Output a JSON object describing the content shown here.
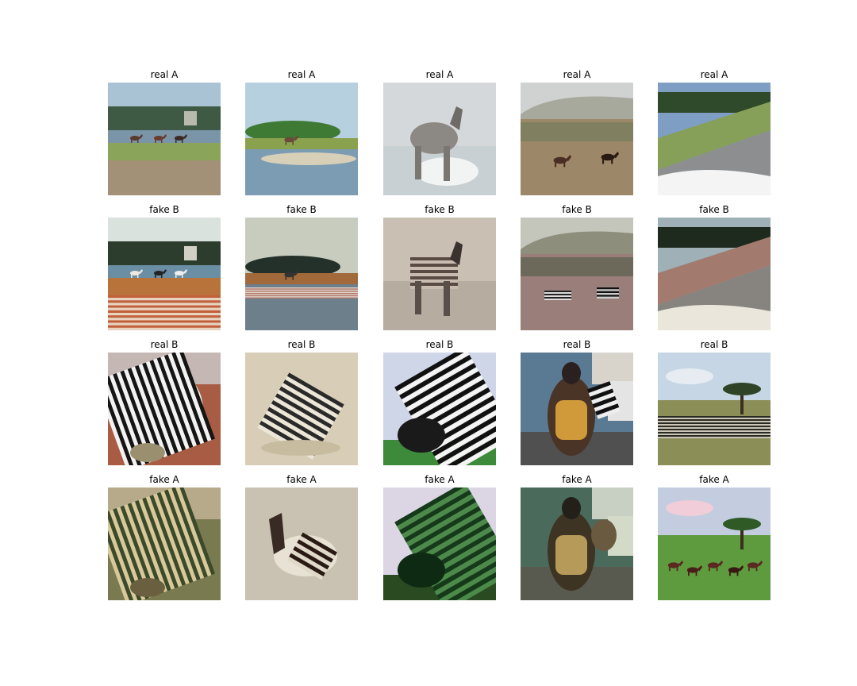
{
  "figure": {
    "rows": [
      {
        "label": "real A",
        "cells": [
          {
            "title": "real A",
            "scene": "marsh-horses"
          },
          {
            "title": "real A",
            "scene": "river-horse"
          },
          {
            "title": "real A",
            "scene": "horse-water"
          },
          {
            "title": "real A",
            "scene": "hill-horses"
          },
          {
            "title": "real A",
            "scene": "road-car"
          }
        ]
      },
      {
        "label": "fake B",
        "cells": [
          {
            "title": "fake B",
            "scene": "marsh-horses-fake"
          },
          {
            "title": "fake B",
            "scene": "river-horse-fake"
          },
          {
            "title": "fake B",
            "scene": "horse-water-fake"
          },
          {
            "title": "fake B",
            "scene": "hill-horses-fake"
          },
          {
            "title": "fake B",
            "scene": "road-car-fake"
          }
        ]
      },
      {
        "label": "real B",
        "cells": [
          {
            "title": "real B",
            "scene": "zebra-closeup"
          },
          {
            "title": "real B",
            "scene": "zebra-foal"
          },
          {
            "title": "real B",
            "scene": "zebra-head"
          },
          {
            "title": "real B",
            "scene": "street-backpack"
          },
          {
            "title": "real B",
            "scene": "savanna-herd"
          }
        ]
      },
      {
        "label": "fake A",
        "cells": [
          {
            "title": "fake A",
            "scene": "zebra-closeup-fake"
          },
          {
            "title": "fake A",
            "scene": "zebra-foal-fake"
          },
          {
            "title": "fake A",
            "scene": "zebra-head-fake"
          },
          {
            "title": "fake A",
            "scene": "street-backpack-fake"
          },
          {
            "title": "fake A",
            "scene": "savanna-herd-fake"
          }
        ]
      }
    ]
  }
}
